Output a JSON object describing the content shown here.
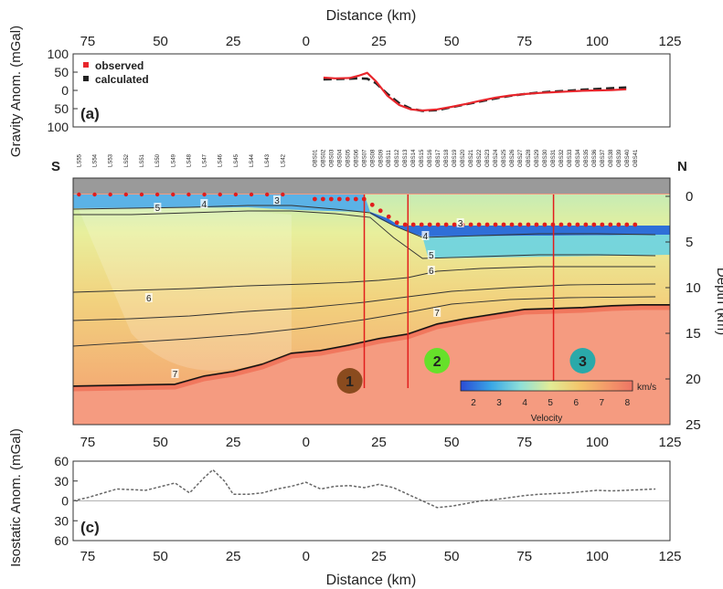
{
  "chart_data": [
    {
      "panel": "a",
      "type": "line",
      "panel_label": "(a)",
      "xlabel": "Distance (km)",
      "ylabel": "Gravity Anom. (mGal)",
      "xlim": [
        -80,
        125
      ],
      "ylim": [
        -100,
        100
      ],
      "xtick_values": [
        -75,
        -50,
        -25,
        0,
        25,
        50,
        75,
        100,
        125
      ],
      "xtick_labels": [
        "75",
        "50",
        "25",
        "0",
        "25",
        "50",
        "75",
        "100",
        "125"
      ],
      "ytick_values": [
        100,
        50,
        0,
        -50,
        -100
      ],
      "ytick_labels": [
        "100",
        "50",
        "0",
        "50",
        "100"
      ],
      "legend": {
        "placement": "top-left",
        "entries": [
          "observed",
          "calculated"
        ]
      },
      "series": [
        {
          "name": "observed",
          "color": "#e8262c",
          "x": [
            6,
            10,
            15,
            18,
            21,
            24,
            28,
            32,
            36,
            40,
            45,
            50,
            55,
            60,
            65,
            70,
            75,
            80,
            85,
            90,
            95,
            100,
            105,
            110
          ],
          "y": [
            35,
            33,
            34,
            40,
            48,
            25,
            -15,
            -40,
            -52,
            -55,
            -52,
            -45,
            -37,
            -28,
            -20,
            -14,
            -10,
            -7,
            -5,
            -3,
            -1,
            0,
            1,
            3
          ]
        },
        {
          "name": "calculated",
          "color": "#222222",
          "x": [
            6,
            10,
            15,
            18,
            21,
            24,
            28,
            32,
            36,
            40,
            45,
            50,
            55,
            60,
            65,
            70,
            75,
            80,
            85,
            90,
            95,
            100,
            105,
            110
          ],
          "y": [
            30,
            31,
            32,
            33,
            32,
            20,
            -10,
            -35,
            -50,
            -56,
            -54,
            -46,
            -38,
            -30,
            -22,
            -15,
            -10,
            -6,
            -3,
            -1,
            2,
            4,
            6,
            8
          ]
        }
      ]
    },
    {
      "panel": "b",
      "type": "heatmap",
      "ylabel": "Depth (km)",
      "xlim": [
        -80,
        125
      ],
      "ylim": [
        25,
        -2
      ],
      "ytick_values": [
        0,
        5,
        10,
        15,
        20,
        25
      ],
      "ytick_labels": [
        "0",
        "5",
        "10",
        "15",
        "20",
        "25"
      ],
      "xtick_values": [
        -75,
        -50,
        -25,
        0,
        25,
        50,
        75,
        100,
        125
      ],
      "xtick_labels": [
        "75",
        "50",
        "25",
        "0",
        "25",
        "50",
        "75",
        "100",
        "125"
      ],
      "end_labels": {
        "left": "S",
        "right": "N"
      },
      "colorbar": {
        "label": "Velocity",
        "unit": "km/s",
        "ticks": [
          "2",
          "3",
          "4",
          "5",
          "6",
          "7",
          "8"
        ],
        "range": [
          1.5,
          8.2
        ]
      },
      "stations_left": [
        "LS55",
        "LS54",
        "LS53",
        "LS52",
        "LS51",
        "LS50",
        "LS49",
        "LS48",
        "LS47",
        "LS46",
        "LS45",
        "LS44",
        "LS43",
        "LS42"
      ],
      "stations_right": [
        "OBS01",
        "OBS02",
        "OBS03",
        "OBS04",
        "OBS05",
        "OBS06",
        "OBS07",
        "OBS08",
        "OBS09",
        "OBS11",
        "OBS12",
        "OBS13",
        "OBS14",
        "OBS15",
        "OBS16",
        "OBS17",
        "OBS18",
        "OBS19",
        "OBS20",
        "OBS21",
        "OBS22",
        "OBS23",
        "OBS24",
        "OBS25",
        "OBS26",
        "OBS27",
        "OBS28",
        "OBS29",
        "OBS30",
        "OBS31",
        "OBS32",
        "OBS33",
        "OBS34",
        "OBS35",
        "OBS36",
        "OBS37",
        "OBS38",
        "OBS39",
        "OBS40",
        "OBS41"
      ],
      "contour_labels": [
        {
          "text": "5",
          "x": -51,
          "z": 1.3
        },
        {
          "text": "4",
          "x": -35,
          "z": 0.9
        },
        {
          "text": "3",
          "x": -10,
          "z": 0.5
        },
        {
          "text": "6",
          "x": -54,
          "z": 11.2
        },
        {
          "text": "7",
          "x": -45,
          "z": 19.5
        },
        {
          "text": "4",
          "x": 41,
          "z": 4.4
        },
        {
          "text": "5",
          "x": 43,
          "z": 6.5
        },
        {
          "text": "6",
          "x": 43,
          "z": 8.2
        },
        {
          "text": "7",
          "x": 45,
          "z": 12.8
        },
        {
          "text": "3",
          "x": 53,
          "z": 3.0
        }
      ],
      "contours": [
        {
          "value": 4,
          "x": [
            -80,
            -60,
            -40,
            -20,
            -5,
            10,
            22,
            30,
            40,
            60,
            80,
            100,
            120
          ],
          "z": [
            1.4,
            1.3,
            1.2,
            1.0,
            1.0,
            1.4,
            1.8,
            3.2,
            4.5,
            4.3,
            4.1,
            4.1,
            4.2
          ]
        },
        {
          "value": 5,
          "x": [
            -80,
            -60,
            -40,
            -20,
            -5,
            10,
            22,
            30,
            40,
            60,
            80,
            100,
            120
          ],
          "z": [
            2.0,
            2.0,
            1.8,
            1.6,
            1.6,
            1.9,
            2.3,
            4.5,
            6.8,
            6.6,
            6.4,
            6.4,
            6.5
          ]
        },
        {
          "value": 6,
          "x": [
            -80,
            -60,
            -40,
            -20,
            0,
            15,
            25,
            35,
            45,
            60,
            80,
            100,
            120
          ],
          "z": [
            10.5,
            10.3,
            10.1,
            9.8,
            9.6,
            9.4,
            9.2,
            8.9,
            8.2,
            7.9,
            7.7,
            7.7,
            7.7
          ]
        },
        {
          "value": 6.5,
          "x": [
            -80,
            -60,
            -40,
            -20,
            0,
            20,
            35,
            50,
            70,
            90,
            120
          ],
          "z": [
            13.6,
            13.4,
            13.1,
            12.6,
            12.2,
            11.6,
            11.0,
            10.4,
            10.0,
            9.7,
            9.6
          ]
        },
        {
          "value": 6.8,
          "x": [
            -80,
            -60,
            -40,
            -20,
            0,
            20,
            35,
            50,
            70,
            90,
            120
          ],
          "z": [
            16.4,
            16.0,
            15.6,
            15.1,
            14.4,
            13.5,
            12.7,
            11.8,
            11.3,
            11.1,
            11.0
          ]
        },
        {
          "value": 7,
          "x": [
            -80,
            -45,
            -35,
            -25,
            -15,
            -5,
            5,
            15,
            25,
            35,
            45,
            55,
            65,
            75,
            85,
            95,
            105,
            115,
            120
          ],
          "z": [
            20.8,
            20.6,
            19.7,
            19.2,
            18.4,
            17.2,
            16.9,
            16.3,
            15.6,
            15.1,
            14.0,
            13.4,
            12.9,
            12.4,
            12.3,
            12.2,
            12.0,
            11.9,
            11.9
          ]
        }
      ],
      "basement": {
        "x": [
          -80,
          -45,
          -35,
          -25,
          -15,
          -5,
          5,
          15,
          25,
          35,
          45,
          55,
          65,
          75,
          85,
          95,
          105,
          115,
          125
        ],
        "z": [
          20.8,
          20.6,
          19.7,
          19.2,
          18.4,
          17.2,
          16.9,
          16.3,
          15.6,
          15.1,
          14.0,
          13.4,
          12.9,
          12.4,
          12.3,
          12.2,
          12.0,
          11.9,
          11.9
        ]
      },
      "vertical_lines_x": [
        20,
        35,
        85
      ],
      "zones": [
        {
          "label": "1",
          "x": 15,
          "z": 20.2,
          "color": "#8a4b1e"
        },
        {
          "label": "2",
          "x": 45,
          "z": 18.0,
          "color": "#66e02a"
        },
        {
          "label": "3",
          "x": 95,
          "z": 18.0,
          "color": "#2aa9a9"
        }
      ]
    },
    {
      "panel": "c",
      "type": "line",
      "panel_label": "(c)",
      "xlabel": "Distance (km)",
      "ylabel": "Isostatic Anom. (mGal)",
      "xlim": [
        -80,
        125
      ],
      "ylim": [
        -60,
        60
      ],
      "xtick_values": [
        -75,
        -50,
        -25,
        0,
        25,
        50,
        75,
        100,
        125
      ],
      "xtick_labels": [
        "75",
        "50",
        "25",
        "0",
        "25",
        "50",
        "75",
        "100",
        "125"
      ],
      "ytick_values": [
        60,
        30,
        0,
        -30,
        -60
      ],
      "ytick_labels": [
        "60",
        "30",
        "0",
        "30",
        "60"
      ],
      "series": [
        {
          "color": "#666666",
          "x": [
            -80,
            -75,
            -65,
            -55,
            -45,
            -40,
            -35,
            -32,
            -28,
            -25,
            -20,
            -15,
            -10,
            -5,
            0,
            5,
            10,
            15,
            20,
            25,
            30,
            35,
            40,
            45,
            50,
            55,
            60,
            65,
            70,
            75,
            80,
            85,
            90,
            95,
            100,
            105,
            110,
            115,
            120
          ],
          "y": [
            0,
            5,
            18,
            16,
            27,
            12,
            35,
            47,
            30,
            10,
            10,
            12,
            18,
            22,
            28,
            18,
            22,
            23,
            20,
            25,
            20,
            10,
            0,
            -10,
            -8,
            -4,
            0,
            2,
            5,
            8,
            10,
            11,
            12,
            14,
            16,
            15,
            16,
            17,
            18
          ]
        }
      ]
    }
  ]
}
